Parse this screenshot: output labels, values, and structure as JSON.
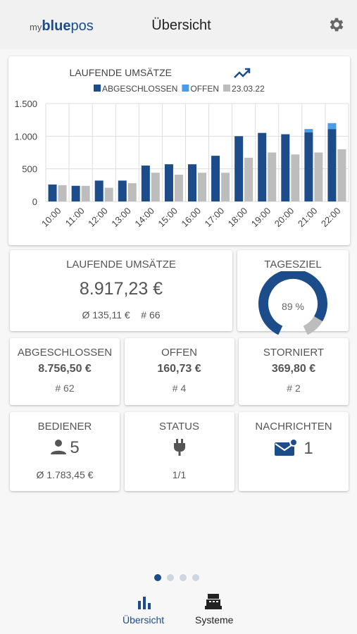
{
  "header": {
    "logo_prefix": "my",
    "logo_brand": "blue",
    "logo_suffix": "pos",
    "title": "Übersicht"
  },
  "chart_data": {
    "type": "bar",
    "title": "LAUFENDE UMSÄTZE",
    "categories": [
      "10:00",
      "11:00",
      "12:00",
      "13:00",
      "14:00",
      "15:00",
      "16:00",
      "17:00",
      "18:00",
      "19:00",
      "20:00",
      "21:00",
      "22:00"
    ],
    "series": [
      {
        "name": "ABGESCHLOSSEN",
        "color": "#1c4c8a",
        "stack": "heute",
        "values": [
          260,
          240,
          320,
          320,
          550,
          570,
          570,
          700,
          1000,
          1050,
          1030,
          1060,
          1110
        ]
      },
      {
        "name": "OFFEN",
        "color": "#4a9be8",
        "stack": "heute",
        "values": [
          0,
          0,
          0,
          0,
          0,
          0,
          0,
          0,
          0,
          0,
          0,
          50,
          90
        ]
      },
      {
        "name": "23.03.22",
        "color": "#bdbdbd",
        "stack": "vortag",
        "values": [
          250,
          240,
          210,
          280,
          440,
          410,
          440,
          440,
          670,
          750,
          720,
          750,
          800
        ]
      }
    ],
    "ylim": [
      0,
      1500
    ],
    "yticks": [
      0,
      500,
      {
        "value": 1000,
        "label": "1.000"
      },
      {
        "value": 1500,
        "label": "1.500"
      }
    ],
    "grid": true
  },
  "summary": {
    "title": "LAUFENDE UMSÄTZE",
    "amount": "8.917,23 €",
    "average": "Ø 135,11 €",
    "count": "# 66"
  },
  "gauge": {
    "title": "TAGESZIEL",
    "value": 89,
    "value_label": "89 %"
  },
  "stats": [
    {
      "title": "ABGESCHLOSSEN",
      "amount": "8.756,50 €",
      "count": "# 62"
    },
    {
      "title": "OFFEN",
      "amount": "160,73 €",
      "count": "# 4"
    },
    {
      "title": "STORNIERT",
      "amount": "369,80 €",
      "count": "# 2"
    }
  ],
  "info": [
    {
      "title": "BEDIENER",
      "value": "5",
      "detail": "Ø 1.783,45 €"
    },
    {
      "title": "STATUS",
      "detail": "1/1"
    },
    {
      "title": "NACHRICHTEN",
      "value": "1"
    }
  ],
  "nav": [
    {
      "label": "Übersicht"
    },
    {
      "label": "Systeme"
    }
  ]
}
